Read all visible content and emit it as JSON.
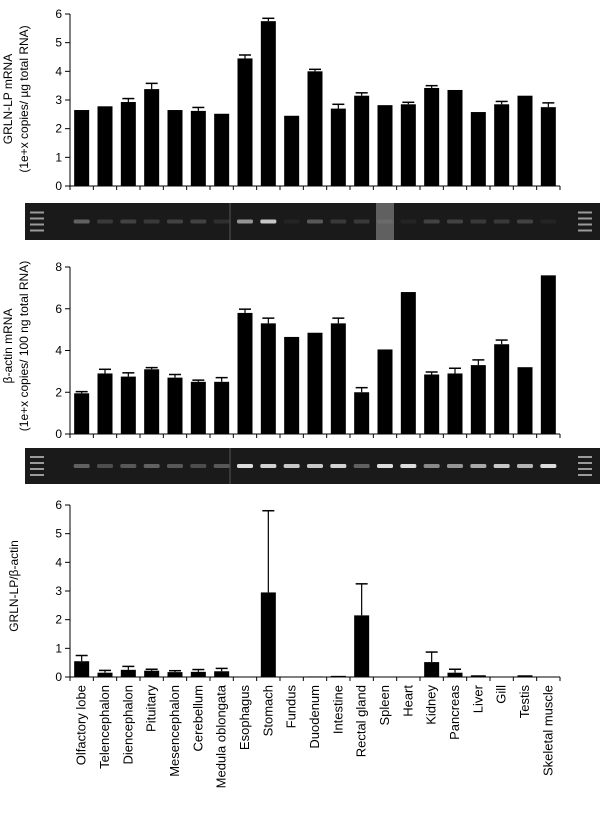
{
  "tissues": [
    "Olfactory lobe",
    "Telencephalon",
    "Diencephalon",
    "Pituitary",
    "Mesencephalon",
    "Cerebellum",
    "Medula oblongata",
    "Esophagus",
    "Stomach",
    "Fundus",
    "Duodenum",
    "Intestine",
    "Rectal gland",
    "Spleen",
    "Heart",
    "Kidney",
    "Pancreas",
    "Liver",
    "Gill",
    "Testis",
    "Skeletal muscle"
  ],
  "colors": {
    "bar": "#000000",
    "gel_bg": "#1a1a1a",
    "band": "#e8e8e8"
  },
  "chart_data": [
    {
      "type": "bar",
      "title": "",
      "xlabel": "",
      "ylabel": "GRLN-LP mRNA",
      "ylabel2": "(1e+x copies/ µg total RNA)",
      "ylim": [
        0,
        6
      ],
      "yticks": [
        "0",
        "1",
        "2",
        "3",
        "4",
        "5",
        "6"
      ],
      "values": [
        2.65,
        2.78,
        2.93,
        3.38,
        2.65,
        2.62,
        2.52,
        4.45,
        5.75,
        2.45,
        4.0,
        2.7,
        3.15,
        2.82,
        2.85,
        3.42,
        3.35,
        2.58,
        2.85,
        3.15,
        2.75
      ],
      "errors": [
        0,
        0,
        0.12,
        0.2,
        0,
        0.12,
        0,
        0.12,
        0.1,
        0,
        0.07,
        0.15,
        0.1,
        0,
        0.07,
        0.08,
        0,
        0,
        0.1,
        0,
        0.15
      ],
      "grid": false
    },
    {
      "type": "bar",
      "title": "",
      "xlabel": "",
      "ylabel": "β-actin mRNA",
      "ylabel2": "(1e+x copies/ 100 ng total RNA)",
      "ylim": [
        0,
        8
      ],
      "yticks": [
        "0",
        "2",
        "4",
        "6",
        "8"
      ],
      "values": [
        1.95,
        2.9,
        2.75,
        3.1,
        2.7,
        2.5,
        2.5,
        5.8,
        5.3,
        4.65,
        4.85,
        5.3,
        2.0,
        4.05,
        6.8,
        2.85,
        2.9,
        3.3,
        4.3,
        3.2,
        7.6
      ],
      "errors": [
        0.08,
        0.2,
        0.18,
        0.08,
        0.15,
        0.08,
        0.2,
        0.18,
        0.25,
        0,
        0,
        0.25,
        0.22,
        0,
        0,
        0.12,
        0.25,
        0.25,
        0.2,
        0,
        0
      ],
      "grid": false
    },
    {
      "type": "bar",
      "title": "",
      "xlabel": "",
      "ylabel": "GRLN-LP/β-actin",
      "ylabel2": "",
      "ylim": [
        0,
        6
      ],
      "yticks": [
        "0",
        "1",
        "2",
        "3",
        "4",
        "5",
        "6"
      ],
      "values": [
        0.55,
        0.15,
        0.25,
        0.22,
        0.17,
        0.18,
        0.2,
        0.0,
        2.95,
        0.0,
        0.02,
        0.04,
        2.15,
        0.0,
        0.0,
        0.52,
        0.15,
        0.06,
        0.0,
        0.06,
        0.0
      ],
      "errors": [
        0.2,
        0.08,
        0.12,
        0.05,
        0.05,
        0.08,
        0.1,
        0,
        2.85,
        0,
        0,
        0,
        1.1,
        0,
        0,
        0.35,
        0.12,
        0,
        0,
        0,
        0
      ],
      "grid": false
    }
  ],
  "gels": [
    {
      "lane_intensity": [
        0.35,
        0.15,
        0.2,
        0.15,
        0.2,
        0.2,
        0.1,
        0.6,
        0.85,
        0.05,
        0.3,
        0.15,
        0.15,
        0.1,
        0.05,
        0.2,
        0.2,
        0.15,
        0.15,
        0.2,
        0.05
      ]
    },
    {
      "lane_intensity": [
        0.35,
        0.25,
        0.3,
        0.35,
        0.3,
        0.25,
        0.3,
        0.95,
        0.9,
        0.85,
        0.85,
        0.9,
        0.35,
        0.95,
        0.95,
        0.55,
        0.6,
        0.7,
        0.85,
        0.75,
        0.95
      ]
    }
  ]
}
